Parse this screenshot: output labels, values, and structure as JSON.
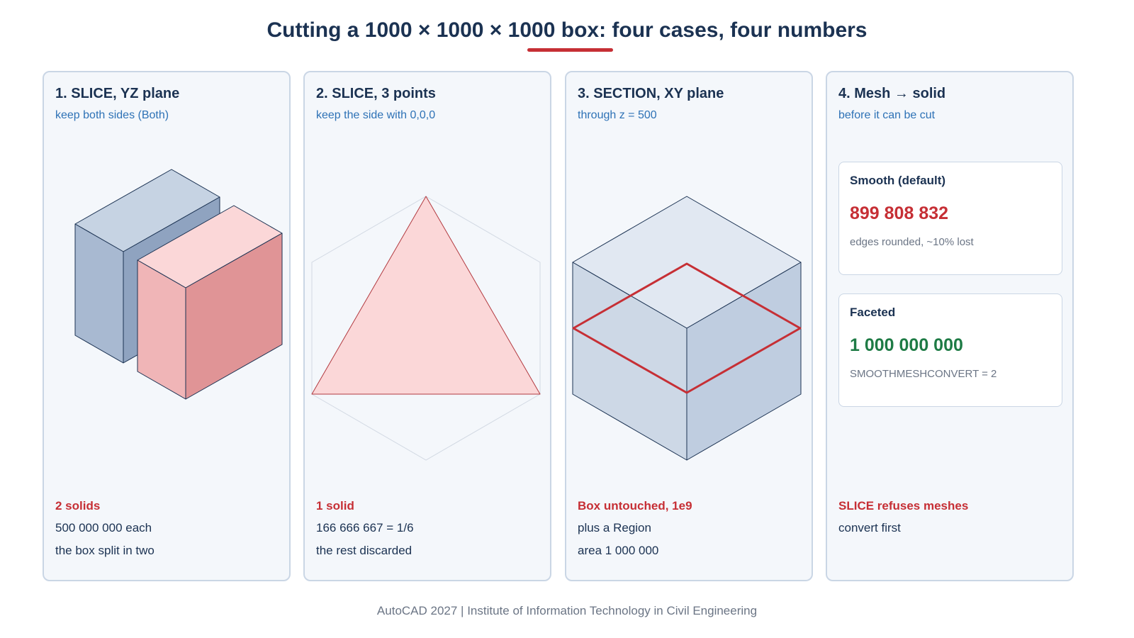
{
  "title": "Cutting a 1000 × 1000 × 1000 box: four cases, four numbers",
  "colors": {
    "accent_red": "#c62f35",
    "accent_green": "#1e7b45",
    "subtitle_blue": "#2e72b6",
    "navy": "#1b3252"
  },
  "cards": [
    {
      "title": "1. SLICE, YZ plane",
      "subtitle": "keep both sides (Both)",
      "result_head": "2 solids",
      "result_lines": [
        "500 000 000 each",
        "the box split in two"
      ]
    },
    {
      "title": "2. SLICE, 3 points",
      "subtitle": "keep the side with 0,0,0",
      "result_head": "1 solid",
      "result_lines": [
        "166 666 667 = 1/6",
        "the rest discarded"
      ]
    },
    {
      "title": "3. SECTION, XY plane",
      "subtitle": "through z = 500",
      "result_head": "Box untouched, 1e9",
      "result_lines": [
        "plus a Region",
        "area 1 000 000"
      ]
    },
    {
      "title": "4. Mesh → solid",
      "subtitle": "before it can be cut",
      "options": [
        {
          "title": "Smooth (default)",
          "value": "899 808 832",
          "note": "edges rounded, ~10% lost"
        },
        {
          "title": "Faceted",
          "value": "1 000 000 000",
          "note": "SMOOTHMESHCONVERT = 2"
        }
      ],
      "result_head": "SLICE refuses meshes",
      "result_lines": [
        "convert first"
      ]
    }
  ],
  "footer": "AutoCAD 2027 | Institute of Information Technology in Civil Engineering"
}
